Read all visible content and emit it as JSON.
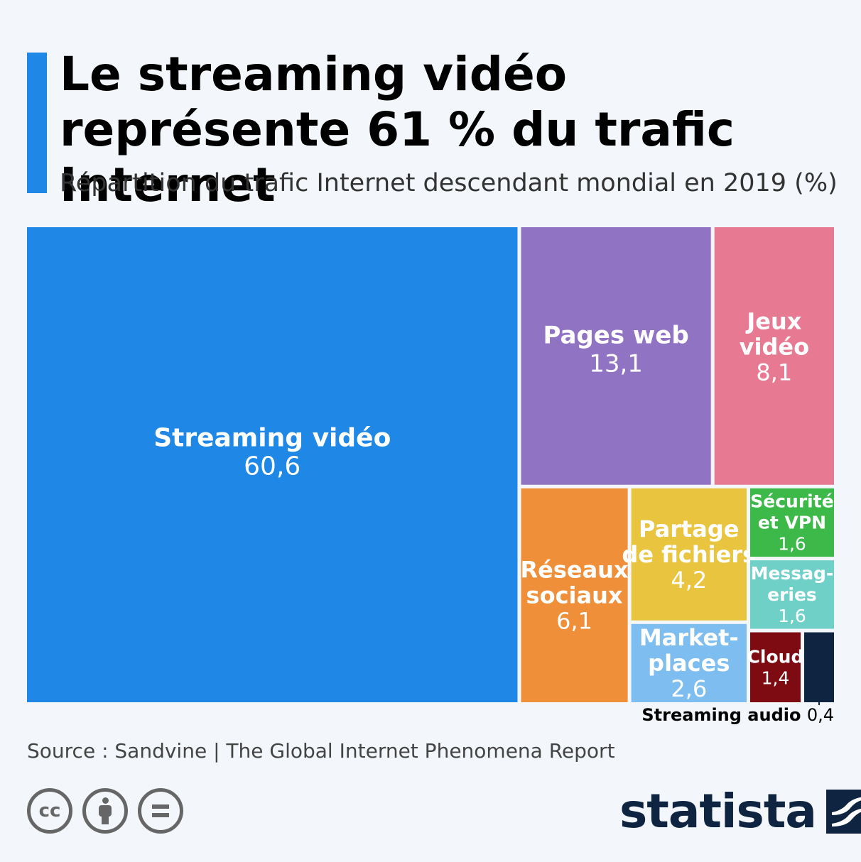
{
  "title": "Le streaming vidéo représente 61 % du trafic Internet",
  "subtitle": "Répartition du trafic Internet descendant mondial en 2019 (%)",
  "source": "Source : Sandvine | The Global Internet Phenomena Report",
  "logo": {
    "text": "statista"
  },
  "licenses": {
    "cc": "cc"
  },
  "colors": {
    "background": "#f3f6fa",
    "accent": "#1f87e5"
  },
  "chart_data": {
    "type": "treemap",
    "title": "Le streaming vidéo représente 61 % du trafic Internet",
    "subtitle": "Répartition du trafic Internet descendant mondial en 2019 (%)",
    "unit": "%",
    "items": [
      {
        "name": "Streaming vidéo",
        "label_lines": [
          "Streaming vidéo"
        ],
        "value": 60.6,
        "value_label": "60,6",
        "color": "#1f87e5"
      },
      {
        "name": "Pages web",
        "label_lines": [
          "Pages web"
        ],
        "value": 13.1,
        "value_label": "13,1",
        "color": "#9173c4"
      },
      {
        "name": "Jeux vidéo",
        "label_lines": [
          "Jeux",
          "vidéo"
        ],
        "value": 8.1,
        "value_label": "8,1",
        "color": "#e77992"
      },
      {
        "name": "Réseaux sociaux",
        "label_lines": [
          "Réseaux",
          "sociaux"
        ],
        "value": 6.1,
        "value_label": "6,1",
        "color": "#ef8f39"
      },
      {
        "name": "Partage de fichiers",
        "label_lines": [
          "Partage",
          "de fichiers"
        ],
        "value": 4.2,
        "value_label": "4,2",
        "color": "#e9c43f"
      },
      {
        "name": "Marketplaces",
        "label_lines": [
          "Market-",
          "places"
        ],
        "value": 2.6,
        "value_label": "2,6",
        "color": "#7dbdf0"
      },
      {
        "name": "Sécurité et VPN",
        "label_lines": [
          "Sécurité",
          "et VPN"
        ],
        "value": 1.6,
        "value_label": "1,6",
        "color": "#3db94a"
      },
      {
        "name": "Messageries",
        "label_lines": [
          "Messag-",
          "eries"
        ],
        "value": 1.6,
        "value_label": "1,6",
        "color": "#6fd0c8"
      },
      {
        "name": "Cloud",
        "label_lines": [
          "Cloud"
        ],
        "value": 1.4,
        "value_label": "1,4",
        "color": "#7e0b12"
      },
      {
        "name": "Streaming audio",
        "label_lines": [
          "Streaming audio"
        ],
        "value": 0.4,
        "value_label": "0,4",
        "color": "#0e2440"
      }
    ]
  }
}
